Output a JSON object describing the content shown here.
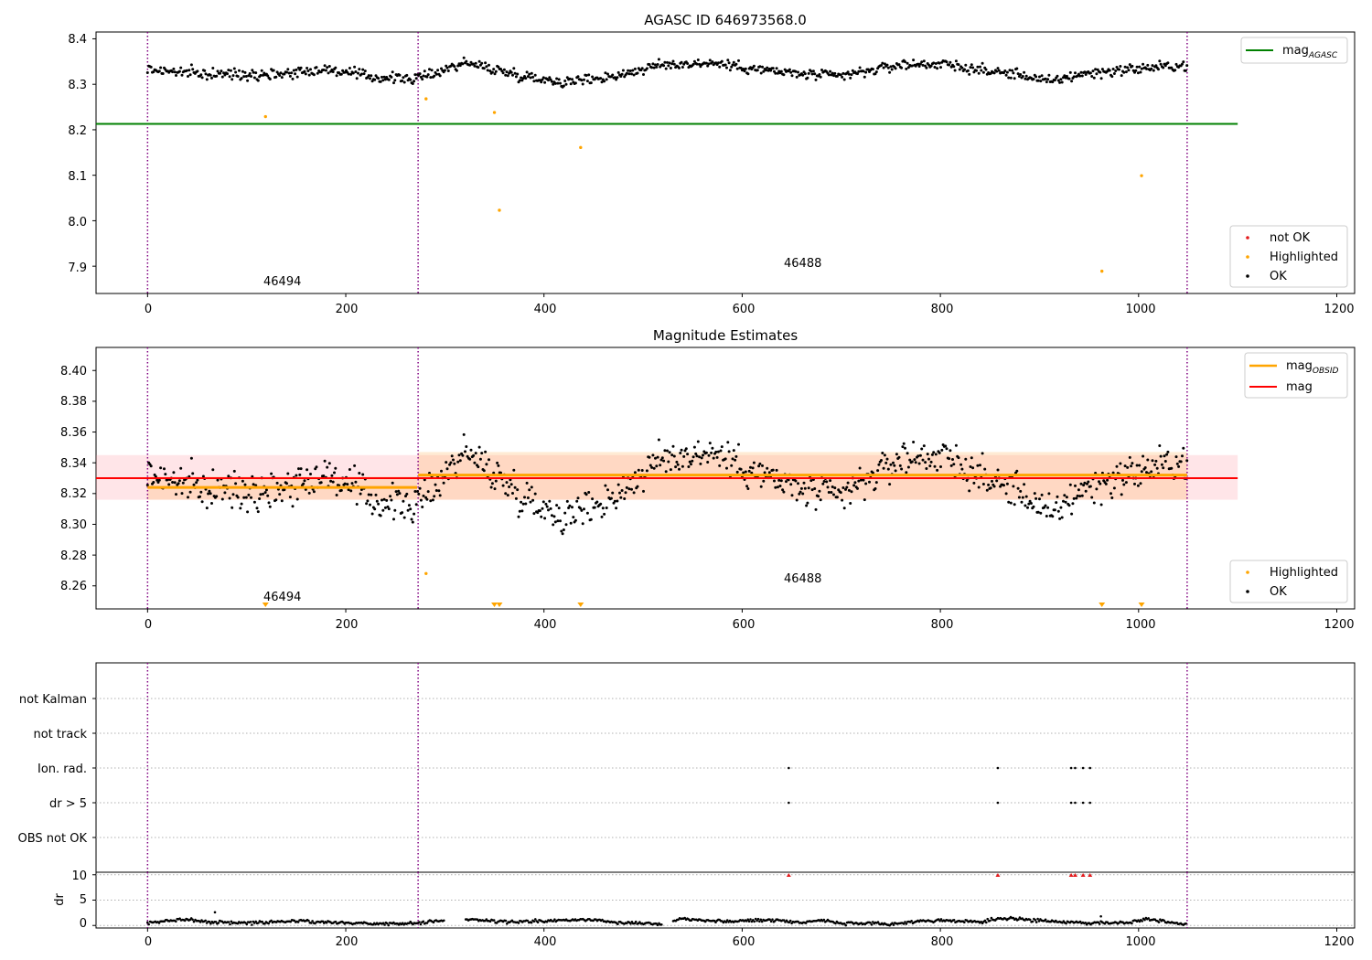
{
  "chart_data": [
    {
      "type": "scatter",
      "title": "AGASC ID 646973568.0",
      "xlim": [
        -52,
        1218
      ],
      "ylim": [
        7.84,
        8.415
      ],
      "xticks": [
        "0",
        "200",
        "400",
        "600",
        "800",
        "1000",
        "1200"
      ],
      "yticks": [
        "7.9",
        "8.0",
        "8.1",
        "8.2",
        "8.3",
        "8.4"
      ],
      "obsid_boundaries": [
        0,
        273,
        1049
      ],
      "obsid_labels": [
        {
          "text": "46494",
          "x": 135,
          "y": 7.866
        },
        {
          "text": "46488",
          "x": 660,
          "y": 7.906
        }
      ],
      "mag_agasc": 8.213,
      "mag_agasc_xrange": [
        -52,
        1100
      ],
      "series": [
        {
          "name": "not OK",
          "color": "#e41a1c",
          "points": []
        },
        {
          "name": "Highlighted",
          "color": "#ffa500",
          "points": [
            [
              119,
              8.229
            ],
            [
              281,
              8.268
            ],
            [
              350,
              8.238
            ],
            [
              355,
              8.023
            ],
            [
              437,
              8.161
            ],
            [
              963,
              7.889
            ],
            [
              1003,
              8.099
            ]
          ]
        },
        {
          "name": "OK",
          "color": "#000000",
          "band": {
            "x": [
              0,
              1049
            ],
            "anchors": [
              [
                0,
                8.333
              ],
              [
                60,
                8.322
              ],
              [
                130,
                8.323
              ],
              [
                180,
                8.333
              ],
              [
                230,
                8.315
              ],
              [
                272,
                8.312
              ],
              [
                320,
                8.348
              ],
              [
                380,
                8.318
              ],
              [
                420,
                8.305
              ],
              [
                470,
                8.318
              ],
              [
                520,
                8.343
              ],
              [
                570,
                8.347
              ],
              [
                620,
                8.332
              ],
              [
                660,
                8.322
              ],
              [
                700,
                8.318
              ],
              [
                760,
                8.343
              ],
              [
                800,
                8.345
              ],
              [
                850,
                8.328
              ],
              [
                880,
                8.322
              ],
              [
                910,
                8.305
              ],
              [
                940,
                8.322
              ],
              [
                990,
                8.333
              ],
              [
                1049,
                8.342
              ]
            ],
            "spread": 0.018,
            "step": 1.2
          }
        }
      ],
      "legend": [
        {
          "label": "mag",
          "sub": "AGASC",
          "color": "#008000",
          "kind": "line",
          "position": "top-right"
        },
        {
          "label": "not OK",
          "color": "#e41a1c",
          "kind": "marker",
          "position": "bottom-right"
        },
        {
          "label": "Highlighted",
          "color": "#ffa500",
          "kind": "marker",
          "position": "bottom-right"
        },
        {
          "label": "OK",
          "color": "#000000",
          "kind": "marker",
          "position": "bottom-right"
        }
      ]
    },
    {
      "type": "scatter",
      "title": "Magnitude Estimates",
      "xlim": [
        -52,
        1218
      ],
      "ylim": [
        8.245,
        8.415
      ],
      "xticks": [
        "0",
        "200",
        "400",
        "600",
        "800",
        "1000",
        "1200"
      ],
      "yticks": [
        "8.26",
        "8.28",
        "8.30",
        "8.32",
        "8.34",
        "8.36",
        "8.38",
        "8.40"
      ],
      "obsid_boundaries": [
        0,
        273,
        1049
      ],
      "obsid_labels": [
        {
          "text": "46494",
          "x": 135,
          "y": 8.251
        },
        {
          "text": "46488",
          "x": 660,
          "y": 8.264
        }
      ],
      "mag": {
        "value": 8.33,
        "band": [
          8.316,
          8.345
        ],
        "xrange": [
          -52,
          1100
        ],
        "color": "#ff0000"
      },
      "mag_obsid": [
        {
          "x": [
            0,
            272
          ],
          "value": 8.324,
          "band": [
            8.316,
            8.331
          ]
        },
        {
          "x": [
            273,
            1049
          ],
          "value": 8.332,
          "band": [
            8.316,
            8.347
          ]
        }
      ],
      "triangles_x": [
        119,
        350,
        355,
        437,
        963,
        1003
      ],
      "series": [
        {
          "name": "Highlighted",
          "color": "#ffa500",
          "points": [
            [
              281,
              8.268
            ]
          ]
        },
        {
          "name": "OK",
          "color": "#000000",
          "band": {
            "x": [
              0,
              1049
            ],
            "anchors": [
              [
                0,
                8.333
              ],
              [
                60,
                8.322
              ],
              [
                130,
                8.323
              ],
              [
                180,
                8.333
              ],
              [
                230,
                8.315
              ],
              [
                272,
                8.312
              ],
              [
                320,
                8.348
              ],
              [
                380,
                8.318
              ],
              [
                420,
                8.305
              ],
              [
                470,
                8.318
              ],
              [
                520,
                8.343
              ],
              [
                570,
                8.347
              ],
              [
                620,
                8.332
              ],
              [
                660,
                8.322
              ],
              [
                700,
                8.318
              ],
              [
                760,
                8.343
              ],
              [
                800,
                8.345
              ],
              [
                850,
                8.328
              ],
              [
                880,
                8.322
              ],
              [
                910,
                8.305
              ],
              [
                940,
                8.322
              ],
              [
                990,
                8.333
              ],
              [
                1049,
                8.342
              ]
            ],
            "spread": 0.018,
            "step": 1.2
          }
        }
      ],
      "legend": [
        {
          "label": "mag",
          "sub": "OBSID",
          "color": "#ffa500",
          "kind": "line",
          "position": "top-right"
        },
        {
          "label": "mag",
          "sub": "",
          "color": "#ff0000",
          "kind": "line",
          "position": "top-right"
        },
        {
          "label": "Highlighted",
          "color": "#ffa500",
          "kind": "marker",
          "position": "bottom-right"
        },
        {
          "label": "OK",
          "color": "#000000",
          "kind": "marker",
          "position": "bottom-right"
        }
      ]
    },
    {
      "type": "scatter",
      "title": "",
      "xlim": [
        -52,
        1218
      ],
      "categories": [
        "not Kalman",
        "not track",
        "Ion. rad.",
        "dr > 5",
        "OBS not OK"
      ],
      "obsid_boundaries": [
        0,
        273,
        1049
      ],
      "flags": {
        "Ion. rad.": [
          647,
          858,
          932,
          936,
          944,
          951
        ],
        "dr > 5": [
          647,
          858,
          932,
          936,
          944,
          951
        ]
      }
    },
    {
      "type": "scatter",
      "title": "",
      "xlim": [
        -52,
        1218
      ],
      "ylim": [
        -0.5,
        10.5
      ],
      "ylabel": "dr",
      "xticks": [
        "0",
        "200",
        "400",
        "600",
        "800",
        "1000",
        "1200"
      ],
      "yticks": [
        "0",
        "5",
        "10"
      ],
      "obsid_boundaries": [
        0,
        273,
        1049
      ],
      "outliers_x": [
        647,
        858,
        932,
        936,
        944,
        951
      ],
      "series": [
        {
          "name": "dr",
          "color": "#000000",
          "anchors": [
            [
              0,
              0.4
            ],
            [
              20,
              0.9
            ],
            [
              40,
              1.3
            ],
            [
              60,
              0.7
            ],
            [
              100,
              0.5
            ],
            [
              150,
              0.9
            ],
            [
              200,
              0.5
            ],
            [
              260,
              0.3
            ],
            [
              290,
              0.8
            ],
            [
              320,
              1.3
            ],
            [
              360,
              0.7
            ],
            [
              410,
              0.9
            ],
            [
              440,
              1.2
            ],
            [
              480,
              0.6
            ],
            [
              520,
              0.3
            ],
            [
              540,
              1.4
            ],
            [
              580,
              0.8
            ],
            [
              630,
              1.1
            ],
            [
              660,
              0.6
            ],
            [
              680,
              1.1
            ],
            [
              700,
              0.4
            ],
            [
              750,
              0.3
            ],
            [
              790,
              1.0
            ],
            [
              840,
              0.7
            ],
            [
              870,
              1.5
            ],
            [
              900,
              0.9
            ],
            [
              950,
              0.5
            ],
            [
              990,
              0.6
            ],
            [
              1010,
              1.3
            ],
            [
              1049,
              0.2
            ]
          ],
          "extra": [
            [
              68,
              2.6
            ],
            [
              962,
              1.8
            ]
          ]
        }
      ]
    }
  ]
}
